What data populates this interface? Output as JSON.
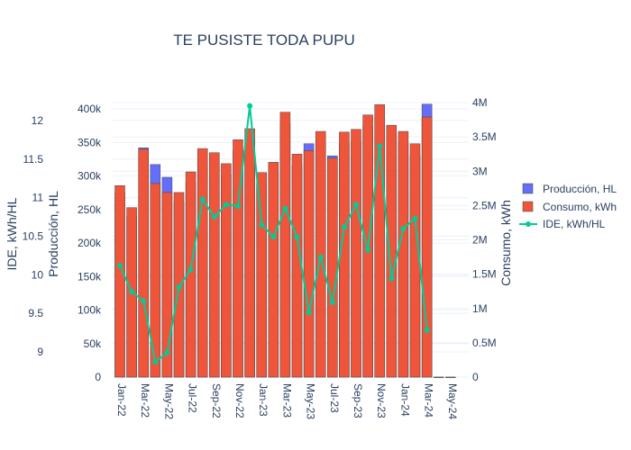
{
  "chart_data": {
    "type": "bar",
    "title": "TE PUSISTE TODA PUPU",
    "categories": [
      "Jan-22",
      "Feb-22",
      "Mar-22",
      "Apr-22",
      "May-22",
      "Jun-22",
      "Jul-22",
      "Aug-22",
      "Sep-22",
      "Oct-22",
      "Nov-22",
      "Dec-22",
      "Jan-23",
      "Feb-23",
      "Mar-23",
      "Apr-23",
      "May-23",
      "Jun-23",
      "Jul-23",
      "Aug-23",
      "Sep-23",
      "Oct-23",
      "Nov-23",
      "Dec-23",
      "Jan-24",
      "Feb-24",
      "Mar-24",
      "Apr-24",
      "May-24"
    ],
    "tick_labels": [
      "Jan-22",
      "Mar-22",
      "May-22",
      "Jul-22",
      "Sep-22",
      "Nov-22",
      "Jan-23",
      "Mar-23",
      "May-23",
      "Jul-23",
      "Sep-23",
      "Nov-23",
      "Jan-24",
      "Mar-24",
      "May-24"
    ],
    "series": [
      {
        "name": "Producción, HL",
        "type": "bar",
        "axis": "y2",
        "color": "#636efa",
        "values": [
          275000,
          240000,
          342000,
          317000,
          298000,
          262000,
          290000,
          325000,
          318000,
          302000,
          338000,
          355000,
          290000,
          305000,
          378000,
          316000,
          348000,
          350000,
          330000,
          348000,
          352000,
          374000,
          390000,
          358000,
          350000,
          330000,
          407000,
          0,
          0
        ]
      },
      {
        "name": "Consumo, kWh",
        "type": "bar",
        "axis": "y3",
        "color": "#ef553b",
        "values": [
          2790000,
          2470000,
          3320000,
          2820000,
          2690000,
          2690000,
          2990000,
          3330000,
          3270000,
          3110000,
          3460000,
          3620000,
          2980000,
          3130000,
          3860000,
          3250000,
          3300000,
          3580000,
          3190000,
          3570000,
          3610000,
          3820000,
          3970000,
          3670000,
          3580000,
          3400000,
          3790000,
          0,
          0
        ]
      },
      {
        "name": "IDE, kWh/HL",
        "type": "line",
        "axis": "y1",
        "color": "#00cc96",
        "values": [
          10.12,
          9.78,
          9.66,
          8.87,
          8.99,
          9.84,
          10.07,
          10.98,
          10.75,
          10.91,
          10.89,
          12.19,
          10.65,
          10.49,
          10.86,
          10.49,
          9.51,
          10.23,
          9.64,
          10.62,
          10.91,
          10.32,
          11.67,
          9.95,
          10.6,
          10.73,
          9.28,
          null,
          null
        ]
      }
    ],
    "axes": {
      "y1": {
        "label": "IDE, kWh/HL",
        "ticks": [
          "9",
          "9.5",
          "10",
          "10.5",
          "11",
          "11.5",
          "12"
        ],
        "tick_values": [
          9,
          9.5,
          10,
          10.5,
          11,
          11.5,
          12
        ],
        "range": [
          8.7,
          12.33
        ]
      },
      "y2": {
        "label": "Producción, HL",
        "ticks": [
          "0",
          "50k",
          "100k",
          "150k",
          "200k",
          "250k",
          "300k",
          "350k",
          "400k"
        ],
        "tick_values": [
          0,
          50000,
          100000,
          150000,
          200000,
          250000,
          300000,
          350000,
          400000
        ],
        "range": [
          0,
          412000
        ]
      },
      "y3": {
        "label": "Consumo, kWh",
        "ticks": [
          "0",
          "0.5M",
          "1M",
          "1.5M",
          "2M",
          "2.5M",
          "3M",
          "3.5M",
          "4M"
        ],
        "tick_values": [
          0,
          500000,
          1000000,
          1500000,
          2000000,
          2500000,
          3000000,
          3500000,
          4000000
        ],
        "range": [
          0,
          4100000
        ]
      }
    },
    "legend_position": "right",
    "grid": true
  }
}
